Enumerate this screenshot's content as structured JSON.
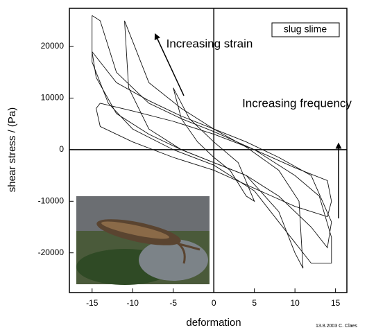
{
  "chart_data": {
    "type": "line",
    "xlabel": "deformation",
    "ylabel": "shear stress / (Pa)",
    "xlim": [
      -17.8,
      16.4
    ],
    "ylim": [
      -27700,
      27400
    ],
    "xticks": [
      -15,
      -10,
      -5,
      0,
      5,
      10,
      15
    ],
    "yticks": [
      -20000,
      -10000,
      0,
      10000,
      20000
    ],
    "annotations": [
      "slug slime",
      "Increasing strain",
      "Increasing frequency",
      "13.8.2003 C. Claes"
    ],
    "series": [
      {
        "color": "#111111",
        "x": [
          -15,
          -14,
          -12,
          -8,
          -4,
          0,
          5,
          10,
          13,
          14.5,
          14.5,
          12,
          10,
          5,
          0,
          -5,
          -10,
          -13,
          -15,
          -15
        ],
        "values": [
          26000,
          25000,
          15000,
          9000,
          6000,
          3500,
          0,
          -5000,
          -9000,
          -17000,
          -22000,
          -22000,
          -18000,
          -8000,
          -3000,
          0,
          4000,
          9000,
          17000,
          26000
        ]
      },
      {
        "color": "#111111",
        "x": [
          -11,
          -10,
          -8,
          -4,
          0,
          4,
          8,
          10.5,
          11,
          10,
          8,
          4,
          0,
          -4,
          -8,
          -10.5,
          -11
        ],
        "values": [
          25000,
          21000,
          13000,
          8000,
          4000,
          500,
          -4000,
          -10000,
          -23000,
          -20000,
          -12000,
          -5000,
          -2500,
          0,
          4000,
          12000,
          25000
        ]
      },
      {
        "color": "#111111",
        "x": [
          -14,
          -10,
          -5,
          0,
          5,
          10,
          14,
          14.5,
          14,
          10,
          5,
          0,
          -5,
          -10,
          -14,
          -14.5,
          -14
        ],
        "values": [
          9000,
          7500,
          5500,
          3000,
          0,
          -3500,
          -6000,
          -10000,
          -13000,
          -11000,
          -7500,
          -4000,
          -1500,
          1500,
          4500,
          8000,
          9000
        ]
      },
      {
        "color": "#111111",
        "x": [
          -5,
          -3,
          0,
          3,
          5,
          4,
          2,
          0,
          -2,
          -4,
          -5
        ],
        "values": [
          12000,
          6000,
          1500,
          -2500,
          -10000,
          -9000,
          -4000,
          -1500,
          1500,
          6000,
          12000
        ]
      },
      {
        "color": "#111111",
        "x": [
          -15,
          -12,
          -8,
          -4,
          0,
          4,
          8,
          12,
          14.5,
          14,
          12,
          8,
          4,
          0,
          -4,
          -8,
          -12,
          -14.5,
          -15
        ],
        "values": [
          19000,
          13000,
          9500,
          6500,
          4000,
          1500,
          -1500,
          -5000,
          -14000,
          -19000,
          -15000,
          -9000,
          -5000,
          -2500,
          0,
          3000,
          7000,
          14000,
          19000
        ]
      }
    ]
  }
}
